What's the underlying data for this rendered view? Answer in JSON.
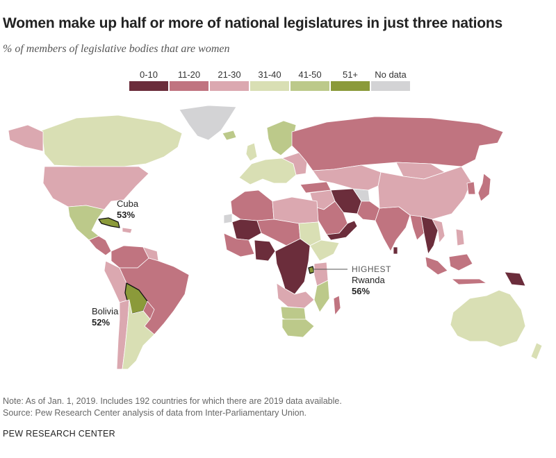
{
  "title": "Women make up half or more of national legislatures in just three nations",
  "subtitle": "% of members of legislative bodies that are women",
  "legend": [
    {
      "label": "0-10",
      "color": "#6b2d3b"
    },
    {
      "label": "11-20",
      "color": "#c07480"
    },
    {
      "label": "21-30",
      "color": "#dba8b0"
    },
    {
      "label": "31-40",
      "color": "#d9dfb4"
    },
    {
      "label": "41-50",
      "color": "#bcc98a"
    },
    {
      "label": "51+",
      "color": "#8b9a3a"
    },
    {
      "label": "No data",
      "color": "#d3d3d5"
    }
  ],
  "callouts": {
    "cuba": {
      "name": "Cuba",
      "value": "53%"
    },
    "bolivia": {
      "name": "Bolivia",
      "value": "52%"
    },
    "rwanda": {
      "tag": "HIGHEST",
      "name": "Rwanda",
      "value": "56%"
    }
  },
  "notes": {
    "line1": "Note: As of Jan. 1, 2019. Includes 192 countries for which there are 2019 data available.",
    "line2": "Source: Pew Research Center analysis of data from Inter-Parliamentary Union."
  },
  "footer": "PEW RESEARCH CENTER",
  "map_data": {
    "highlighted_countries": [
      {
        "country": "Rwanda",
        "share_pct": 56,
        "category": "51+"
      },
      {
        "country": "Cuba",
        "share_pct": 53,
        "category": "51+"
      },
      {
        "country": "Bolivia",
        "share_pct": 52,
        "category": "51+"
      }
    ]
  }
}
